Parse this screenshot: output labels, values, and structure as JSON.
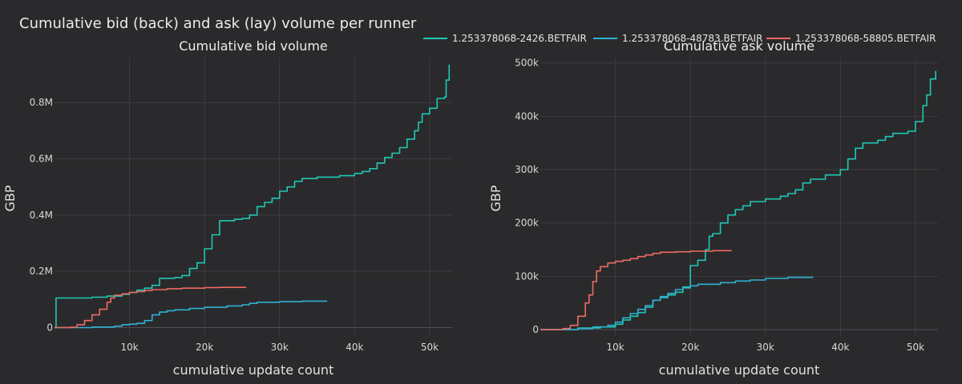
{
  "figure": {
    "title": "Cumulative bid (back) and ask (lay) volume per runner",
    "background": "#2a2a2c",
    "legend_placement": "top-right"
  },
  "legend": [
    {
      "name": "1.253378068-2426.BETFAIR",
      "color": "#1fc9b4"
    },
    {
      "name": "1.253378068-48783.BETFAIR",
      "color": "#2fb2d4"
    },
    {
      "name": "1.253378068-58805.BETFAIR",
      "color": "#ef6b63"
    }
  ],
  "chart_data": [
    {
      "type": "line",
      "title": "Cumulative bid volume",
      "xlabel": "cumulative update count",
      "ylabel": "GBP",
      "xlim": [
        0,
        53000
      ],
      "ylim": [
        -30000,
        960000
      ],
      "xticks": [
        10000,
        20000,
        30000,
        40000,
        50000
      ],
      "xtick_labels": [
        "10k",
        "20k",
        "30k",
        "40k",
        "50k"
      ],
      "yticks": [
        0,
        200000,
        400000,
        600000,
        800000
      ],
      "ytick_labels": [
        "0",
        "0.2M",
        "0.4M",
        "0.6M",
        "0.8M"
      ],
      "grid": true,
      "series": [
        {
          "name": "1.253378068-2426.BETFAIR",
          "color": "#1fc9b4",
          "points": [
            [
              0,
              0
            ],
            [
              200,
              105000
            ],
            [
              5000,
              108000
            ],
            [
              7000,
              112000
            ],
            [
              9000,
              118000
            ],
            [
              10000,
              125000
            ],
            [
              11000,
              133000
            ],
            [
              12000,
              140000
            ],
            [
              13000,
              150000
            ],
            [
              14000,
              175000
            ],
            [
              16000,
              178000
            ],
            [
              17000,
              185000
            ],
            [
              18000,
              210000
            ],
            [
              19000,
              230000
            ],
            [
              20000,
              280000
            ],
            [
              21000,
              330000
            ],
            [
              22000,
              380000
            ],
            [
              24000,
              385000
            ],
            [
              25000,
              388000
            ],
            [
              26000,
              400000
            ],
            [
              27000,
              430000
            ],
            [
              28000,
              445000
            ],
            [
              29000,
              460000
            ],
            [
              30000,
              485000
            ],
            [
              31000,
              500000
            ],
            [
              32000,
              520000
            ],
            [
              33000,
              530000
            ],
            [
              35000,
              535000
            ],
            [
              38000,
              540000
            ],
            [
              40000,
              548000
            ],
            [
              41000,
              555000
            ],
            [
              42000,
              565000
            ],
            [
              43000,
              585000
            ],
            [
              44000,
              605000
            ],
            [
              45000,
              620000
            ],
            [
              46000,
              640000
            ],
            [
              47000,
              670000
            ],
            [
              48000,
              700000
            ],
            [
              48500,
              730000
            ],
            [
              49000,
              760000
            ],
            [
              50000,
              780000
            ],
            [
              51000,
              815000
            ],
            [
              52000,
              820000
            ],
            [
              52200,
              880000
            ],
            [
              52600,
              935000
            ]
          ]
        },
        {
          "name": "1.253378068-48783.BETFAIR",
          "color": "#2fb2d4",
          "points": [
            [
              0,
              0
            ],
            [
              5000,
              2000
            ],
            [
              8000,
              5000
            ],
            [
              9000,
              10000
            ],
            [
              10000,
              12000
            ],
            [
              11000,
              15000
            ],
            [
              12000,
              25000
            ],
            [
              13000,
              45000
            ],
            [
              14000,
              55000
            ],
            [
              15000,
              60000
            ],
            [
              16000,
              63000
            ],
            [
              18000,
              68000
            ],
            [
              20000,
              72000
            ],
            [
              23000,
              77000
            ],
            [
              25000,
              81000
            ],
            [
              26000,
              86000
            ],
            [
              27000,
              90000
            ],
            [
              30000,
              92000
            ],
            [
              33000,
              94000
            ],
            [
              36300,
              95000
            ]
          ]
        },
        {
          "name": "1.253378068-58805.BETFAIR",
          "color": "#ef6b63",
          "points": [
            [
              0,
              0
            ],
            [
              2000,
              1000
            ],
            [
              3000,
              10000
            ],
            [
              4000,
              25000
            ],
            [
              5000,
              45000
            ],
            [
              6000,
              65000
            ],
            [
              7000,
              90000
            ],
            [
              7500,
              105000
            ],
            [
              8000,
              115000
            ],
            [
              9000,
              120000
            ],
            [
              10000,
              125000
            ],
            [
              11000,
              128000
            ],
            [
              12000,
              132000
            ],
            [
              13000,
              135000
            ],
            [
              15000,
              138000
            ],
            [
              17000,
              140000
            ],
            [
              20000,
              142000
            ],
            [
              22000,
              143000
            ],
            [
              25500,
              144000
            ]
          ]
        }
      ]
    },
    {
      "type": "line",
      "title": "Cumulative ask volume",
      "xlabel": "cumulative update count",
      "ylabel": "GBP",
      "xlim": [
        0,
        53000
      ],
      "ylim": [
        -12000,
        510000
      ],
      "xticks": [
        10000,
        20000,
        30000,
        40000,
        50000
      ],
      "xtick_labels": [
        "10k",
        "20k",
        "30k",
        "40k",
        "50k"
      ],
      "yticks": [
        0,
        100000,
        200000,
        300000,
        400000,
        500000
      ],
      "ytick_labels": [
        "0",
        "100k",
        "200k",
        "300k",
        "400k",
        "500k"
      ],
      "grid": true,
      "series": [
        {
          "name": "1.253378068-2426.BETFAIR",
          "color": "#1fc9b4",
          "points": [
            [
              0,
              0
            ],
            [
              3000,
              0
            ],
            [
              5000,
              3000
            ],
            [
              8000,
              5000
            ],
            [
              10000,
              10000
            ],
            [
              11000,
              18000
            ],
            [
              12000,
              25000
            ],
            [
              13000,
              32000
            ],
            [
              14000,
              42000
            ],
            [
              15000,
              55000
            ],
            [
              16000,
              60000
            ],
            [
              17000,
              65000
            ],
            [
              18000,
              70000
            ],
            [
              19000,
              80000
            ],
            [
              20000,
              120000
            ],
            [
              21000,
              130000
            ],
            [
              22000,
              150000
            ],
            [
              22500,
              175000
            ],
            [
              23000,
              180000
            ],
            [
              24000,
              200000
            ],
            [
              25000,
              215000
            ],
            [
              26000,
              225000
            ],
            [
              27000,
              232000
            ],
            [
              28000,
              240000
            ],
            [
              30000,
              245000
            ],
            [
              32000,
              250000
            ],
            [
              33000,
              255000
            ],
            [
              34000,
              262000
            ],
            [
              35000,
              275000
            ],
            [
              36000,
              282000
            ],
            [
              38000,
              290000
            ],
            [
              40000,
              300000
            ],
            [
              41000,
              320000
            ],
            [
              42000,
              340000
            ],
            [
              43000,
              350000
            ],
            [
              45000,
              355000
            ],
            [
              46000,
              362000
            ],
            [
              47000,
              368000
            ],
            [
              49000,
              372000
            ],
            [
              50000,
              390000
            ],
            [
              51000,
              420000
            ],
            [
              51500,
              440000
            ],
            [
              52000,
              470000
            ],
            [
              52700,
              485000
            ]
          ]
        },
        {
          "name": "1.253378068-48783.BETFAIR",
          "color": "#2fb2d4",
          "points": [
            [
              0,
              0
            ],
            [
              5000,
              2000
            ],
            [
              7000,
              5000
            ],
            [
              9000,
              8000
            ],
            [
              10000,
              14000
            ],
            [
              11000,
              22000
            ],
            [
              12000,
              30000
            ],
            [
              13000,
              38000
            ],
            [
              14000,
              45000
            ],
            [
              15000,
              55000
            ],
            [
              16000,
              62000
            ],
            [
              17000,
              68000
            ],
            [
              18000,
              75000
            ],
            [
              19000,
              78000
            ],
            [
              20000,
              82000
            ],
            [
              21000,
              85000
            ],
            [
              24000,
              88000
            ],
            [
              26000,
              91000
            ],
            [
              28000,
              93000
            ],
            [
              30000,
              96000
            ],
            [
              33000,
              98000
            ],
            [
              36300,
              99000
            ]
          ]
        },
        {
          "name": "1.253378068-58805.BETFAIR",
          "color": "#ef6b63",
          "points": [
            [
              0,
              0
            ],
            [
              3000,
              2000
            ],
            [
              4000,
              8000
            ],
            [
              5000,
              25000
            ],
            [
              6000,
              50000
            ],
            [
              6500,
              65000
            ],
            [
              7000,
              90000
            ],
            [
              7500,
              110000
            ],
            [
              8000,
              118000
            ],
            [
              9000,
              125000
            ],
            [
              10000,
              128000
            ],
            [
              11000,
              130000
            ],
            [
              12000,
              133000
            ],
            [
              13000,
              137000
            ],
            [
              14000,
              140000
            ],
            [
              15000,
              143000
            ],
            [
              16000,
              145000
            ],
            [
              18000,
              146000
            ],
            [
              20000,
              147000
            ],
            [
              23000,
              148000
            ],
            [
              25500,
              148000
            ]
          ]
        }
      ]
    }
  ]
}
